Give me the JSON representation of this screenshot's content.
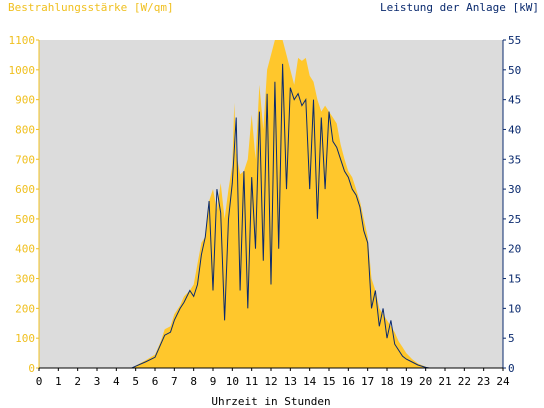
{
  "chart_data": {
    "type": "area",
    "left_axis_title": "Bestrahlungsstärke [W/qm]",
    "right_axis_title": "Leistung der Anlage [kW]",
    "xlabel": "Uhrzeit in Stunden",
    "x_ticks": [
      "0",
      "1",
      "2",
      "3",
      "4",
      "5",
      "6",
      "7",
      "8",
      "9",
      "10",
      "11",
      "12",
      "13",
      "14",
      "15",
      "16",
      "17",
      "18",
      "19",
      "20",
      "21",
      "22",
      "23",
      "24"
    ],
    "left_ticks": [
      "0",
      "100",
      "200",
      "300",
      "400",
      "500",
      "600",
      "700",
      "800",
      "900",
      "1000",
      "1100"
    ],
    "right_ticks": [
      "0",
      "5",
      "10",
      "15",
      "20",
      "25",
      "30",
      "35",
      "40",
      "45",
      "50",
      "55"
    ],
    "xlim": [
      0,
      24
    ],
    "ylim_left": [
      0,
      1100
    ],
    "ylim_right": [
      0,
      55
    ],
    "series": [
      {
        "name": "Bestrahlungsstärke",
        "axis": "left",
        "color": "#ffc72c",
        "points": [
          [
            0,
            0
          ],
          [
            4.8,
            0
          ],
          [
            5.0,
            8
          ],
          [
            5.5,
            25
          ],
          [
            6.0,
            45
          ],
          [
            6.3,
            90
          ],
          [
            6.5,
            130
          ],
          [
            6.8,
            140
          ],
          [
            7.0,
            180
          ],
          [
            7.3,
            210
          ],
          [
            7.5,
            240
          ],
          [
            7.8,
            260
          ],
          [
            8.0,
            280
          ],
          [
            8.2,
            350
          ],
          [
            8.4,
            420
          ],
          [
            8.6,
            440
          ],
          [
            8.8,
            560
          ],
          [
            9.0,
            600
          ],
          [
            9.2,
            530
          ],
          [
            9.4,
            620
          ],
          [
            9.6,
            500
          ],
          [
            9.8,
            600
          ],
          [
            10.0,
            680
          ],
          [
            10.1,
            890
          ],
          [
            10.2,
            720
          ],
          [
            10.4,
            650
          ],
          [
            10.6,
            660
          ],
          [
            10.8,
            700
          ],
          [
            11.0,
            850
          ],
          [
            11.2,
            700
          ],
          [
            11.4,
            950
          ],
          [
            11.6,
            800
          ],
          [
            11.8,
            1000
          ],
          [
            12.0,
            1050
          ],
          [
            12.2,
            1100
          ],
          [
            12.4,
            1100
          ],
          [
            12.6,
            1100
          ],
          [
            12.8,
            1050
          ],
          [
            13.0,
            1000
          ],
          [
            13.2,
            950
          ],
          [
            13.4,
            1040
          ],
          [
            13.6,
            1030
          ],
          [
            13.8,
            1040
          ],
          [
            14.0,
            980
          ],
          [
            14.2,
            960
          ],
          [
            14.4,
            900
          ],
          [
            14.6,
            860
          ],
          [
            14.8,
            880
          ],
          [
            15.0,
            860
          ],
          [
            15.2,
            840
          ],
          [
            15.4,
            820
          ],
          [
            15.6,
            750
          ],
          [
            15.8,
            700
          ],
          [
            16.0,
            660
          ],
          [
            16.2,
            640
          ],
          [
            16.4,
            600
          ],
          [
            16.6,
            560
          ],
          [
            16.8,
            500
          ],
          [
            17.0,
            440
          ],
          [
            17.2,
            300
          ],
          [
            17.4,
            260
          ],
          [
            17.6,
            200
          ],
          [
            17.8,
            180
          ],
          [
            18.0,
            160
          ],
          [
            18.2,
            140
          ],
          [
            18.4,
            120
          ],
          [
            18.6,
            90
          ],
          [
            18.8,
            70
          ],
          [
            19.0,
            50
          ],
          [
            19.3,
            30
          ],
          [
            19.6,
            15
          ],
          [
            20.0,
            4
          ],
          [
            20.2,
            0
          ],
          [
            24,
            0
          ]
        ]
      },
      {
        "name": "Leistung der Anlage",
        "axis": "right",
        "color": "#0a2a6e",
        "points": [
          [
            0,
            0
          ],
          [
            4.8,
            0
          ],
          [
            5.0,
            0.3
          ],
          [
            5.5,
            1.0
          ],
          [
            6.0,
            1.8
          ],
          [
            6.3,
            4
          ],
          [
            6.5,
            5.5
          ],
          [
            6.8,
            6
          ],
          [
            7.0,
            8
          ],
          [
            7.3,
            10
          ],
          [
            7.5,
            11
          ],
          [
            7.8,
            13
          ],
          [
            8.0,
            12
          ],
          [
            8.2,
            14
          ],
          [
            8.4,
            19
          ],
          [
            8.6,
            22
          ],
          [
            8.8,
            28
          ],
          [
            9.0,
            13
          ],
          [
            9.2,
            30
          ],
          [
            9.4,
            26
          ],
          [
            9.6,
            8
          ],
          [
            9.8,
            25
          ],
          [
            10.0,
            31
          ],
          [
            10.2,
            42
          ],
          [
            10.4,
            13
          ],
          [
            10.6,
            33
          ],
          [
            10.8,
            10
          ],
          [
            11.0,
            32
          ],
          [
            11.2,
            20
          ],
          [
            11.4,
            43
          ],
          [
            11.6,
            18
          ],
          [
            11.8,
            46
          ],
          [
            12.0,
            14
          ],
          [
            12.2,
            48
          ],
          [
            12.4,
            20
          ],
          [
            12.6,
            51
          ],
          [
            12.8,
            30
          ],
          [
            13.0,
            47
          ],
          [
            13.2,
            45
          ],
          [
            13.4,
            46
          ],
          [
            13.6,
            44
          ],
          [
            13.8,
            45
          ],
          [
            14.0,
            30
          ],
          [
            14.2,
            45
          ],
          [
            14.4,
            25
          ],
          [
            14.6,
            42
          ],
          [
            14.8,
            30
          ],
          [
            15.0,
            43
          ],
          [
            15.2,
            38
          ],
          [
            15.4,
            37
          ],
          [
            15.6,
            35
          ],
          [
            15.8,
            33
          ],
          [
            16.0,
            32
          ],
          [
            16.2,
            30
          ],
          [
            16.4,
            29
          ],
          [
            16.6,
            27
          ],
          [
            16.8,
            23
          ],
          [
            17.0,
            21
          ],
          [
            17.2,
            10
          ],
          [
            17.4,
            13
          ],
          [
            17.6,
            7
          ],
          [
            17.8,
            10
          ],
          [
            18.0,
            5
          ],
          [
            18.2,
            8
          ],
          [
            18.4,
            4
          ],
          [
            18.6,
            3
          ],
          [
            18.8,
            2
          ],
          [
            19.0,
            1.5
          ],
          [
            19.3,
            1
          ],
          [
            19.6,
            0.5
          ],
          [
            20.0,
            0.1
          ],
          [
            20.2,
            0
          ],
          [
            24,
            0
          ]
        ]
      }
    ],
    "grid": false,
    "plot_background": "#dcdcdc"
  }
}
